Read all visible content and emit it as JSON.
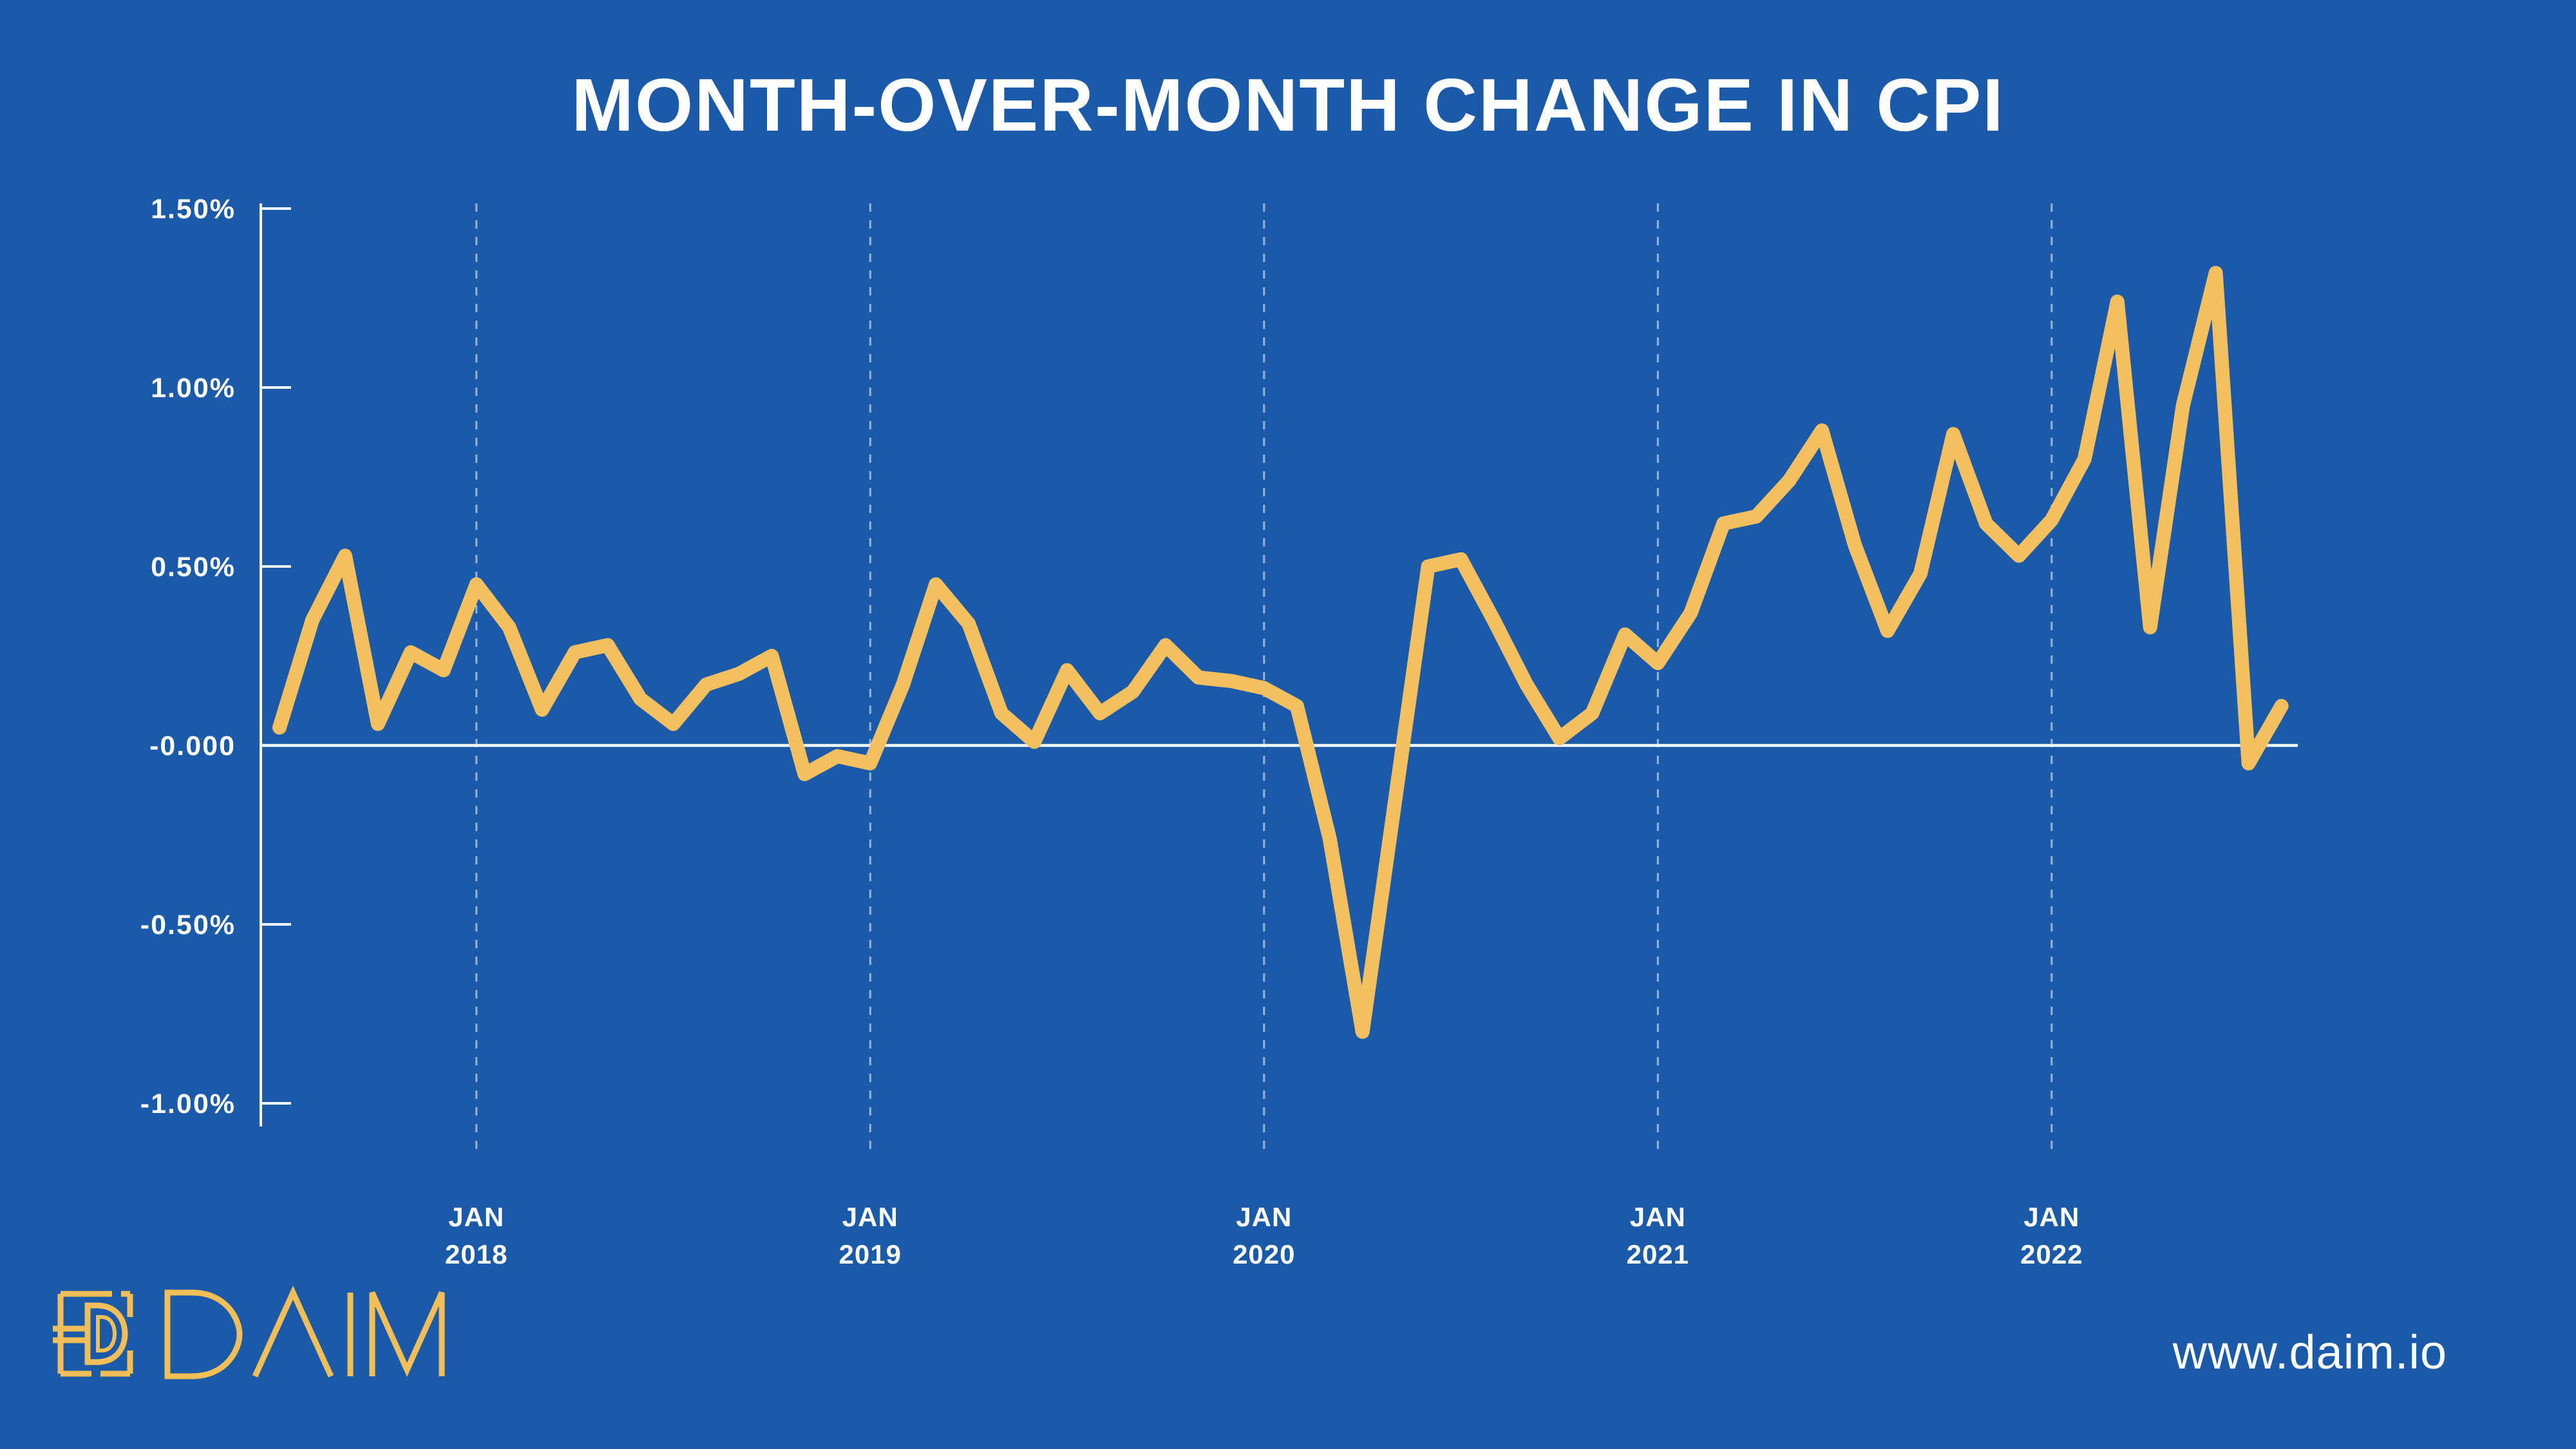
{
  "title": "MONTH-OVER-MONTH CHANGE IN CPI",
  "footer": {
    "url": "www.daim.io",
    "logo_wordmark": "DAIM"
  },
  "colors": {
    "background": "#1A5AA8",
    "line": "#F4C05F",
    "axis": "#FFFFFF",
    "text": "#FFFFFF",
    "dashed_grid": "rgba(255,255,255,0.55)",
    "logo": "#F2BE57"
  },
  "chart_data": {
    "type": "line",
    "title": "MONTH-OVER-MONTH CHANGE IN CPI",
    "xlabel": "",
    "ylabel": "",
    "ylim": [
      -1.05,
      1.55
    ],
    "grid": "vertical-dashed-at-january",
    "legend": "none",
    "y_ticks": [
      {
        "label": "1.50%",
        "value": 1.5
      },
      {
        "label": "1.00%",
        "value": 1.0
      },
      {
        "label": "0.50%",
        "value": 0.5
      },
      {
        "label": "-0.000",
        "value": 0.0
      },
      {
        "label": "-0.50%",
        "value": -0.5
      },
      {
        "label": "-1.00%",
        "value": -1.0
      }
    ],
    "x_tick_labels": [
      {
        "month": "JAN",
        "year": "2018",
        "index": 6
      },
      {
        "month": "JAN",
        "year": "2019",
        "index": 18
      },
      {
        "month": "JAN",
        "year": "2020",
        "index": 30
      },
      {
        "month": "JAN",
        "year": "2021",
        "index": 42
      },
      {
        "month": "JAN",
        "year": "2022",
        "index": 54
      }
    ],
    "x": [
      "Jul 2017",
      "Aug 2017",
      "Sep 2017",
      "Oct 2017",
      "Nov 2017",
      "Dec 2017",
      "Jan 2018",
      "Feb 2018",
      "Mar 2018",
      "Apr 2018",
      "May 2018",
      "Jun 2018",
      "Jul 2018",
      "Aug 2018",
      "Sep 2018",
      "Oct 2018",
      "Nov 2018",
      "Dec 2018",
      "Jan 2019",
      "Feb 2019",
      "Mar 2019",
      "Apr 2019",
      "May 2019",
      "Jun 2019",
      "Jul 2019",
      "Aug 2019",
      "Sep 2019",
      "Oct 2019",
      "Nov 2019",
      "Dec 2019",
      "Jan 2020",
      "Feb 2020",
      "Mar 2020",
      "Apr 2020",
      "May 2020",
      "Jun 2020",
      "Jul 2020",
      "Aug 2020",
      "Sep 2020",
      "Oct 2020",
      "Nov 2020",
      "Dec 2020",
      "Jan 2021",
      "Feb 2021",
      "Mar 2021",
      "Apr 2021",
      "May 2021",
      "Jun 2021",
      "Jul 2021",
      "Aug 2021",
      "Sep 2021",
      "Oct 2021",
      "Nov 2021",
      "Dec 2021",
      "Jan 2022",
      "Feb 2022",
      "Mar 2022",
      "Apr 2022",
      "May 2022",
      "Jun 2022",
      "Jul 2022",
      "Aug 2022"
    ],
    "values": [
      0.05,
      0.35,
      0.53,
      0.06,
      0.26,
      0.21,
      0.45,
      0.33,
      0.1,
      0.26,
      0.28,
      0.13,
      0.06,
      0.17,
      0.2,
      0.25,
      -0.08,
      -0.03,
      -0.05,
      0.17,
      0.45,
      0.34,
      0.09,
      0.01,
      0.21,
      0.09,
      0.15,
      0.28,
      0.19,
      0.18,
      0.16,
      0.11,
      -0.26,
      -0.8,
      -0.15,
      0.5,
      0.52,
      0.35,
      0.17,
      0.02,
      0.09,
      0.31,
      0.23,
      0.37,
      0.62,
      0.64,
      0.74,
      0.88,
      0.56,
      0.32,
      0.48,
      0.87,
      0.62,
      0.53,
      0.63,
      0.8,
      1.24,
      0.33,
      0.95,
      1.32,
      -0.05,
      0.11
    ]
  }
}
